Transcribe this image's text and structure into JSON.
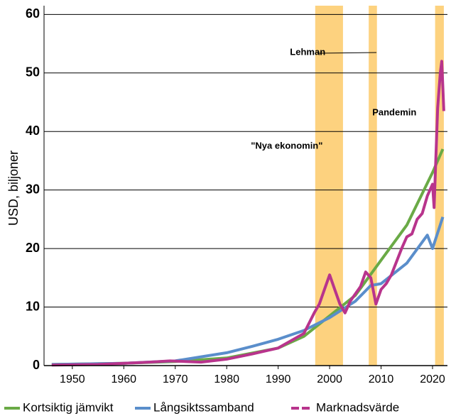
{
  "chart_data": {
    "type": "line",
    "y_label": "USD, biljoner",
    "xlim": [
      1944.5,
      2022.9
    ],
    "xticks": [
      1950,
      1960,
      1970,
      1980,
      1990,
      2000,
      2010,
      2020
    ],
    "ylim": [
      0,
      61.5
    ],
    "yticks": [
      0,
      10,
      20,
      30,
      40,
      50,
      60
    ],
    "grid": true,
    "shaded_periods": [
      [
        1997.2,
        2002.6
      ],
      [
        2007.6,
        2009.2
      ],
      [
        2020.5,
        2022.2
      ]
    ],
    "shade_color": "#fdd27f",
    "annotations": [
      {
        "text": "Lehman",
        "x": 1992.3,
        "y": 53.5
      },
      {
        "text": "Pandemin",
        "x": 2008.3,
        "y": 43.2
      },
      {
        "text": "\"Nya ekonomin\"",
        "x": 1984.7,
        "y": 37.5
      }
    ],
    "series": [
      {
        "name": "Kortsiktig jämvikt",
        "color": "#6aaa46",
        "x": [
          1946,
          1960,
          1970,
          1980,
          1990,
          1995,
          2000,
          2005,
          2010,
          2015,
          2020,
          2022
        ],
        "values": [
          0.2,
          0.4,
          0.7,
          1.3,
          3.0,
          5.0,
          8.5,
          12,
          18,
          24,
          33,
          37
        ]
      },
      {
        "name": "Långsiktssamband",
        "color": "#5a8ecb",
        "x": [
          1946,
          1960,
          1970,
          1980,
          1985,
          1990,
          1995,
          2000,
          2005,
          2008,
          2010,
          2015,
          2019,
          2020,
          2022
        ],
        "values": [
          0.2,
          0.4,
          0.8,
          2.2,
          3.3,
          4.5,
          6.0,
          8.2,
          11,
          13.7,
          14,
          17.5,
          22.3,
          20,
          25.4
        ]
      },
      {
        "name": "Marknadsvärde",
        "color": "#b8348c",
        "x": [
          1946,
          1955,
          1960,
          1965,
          1969,
          1972,
          1975,
          1980,
          1985,
          1990,
          1995,
          1997,
          1998,
          1999,
          2000,
          2001,
          2002,
          2003,
          2004,
          2006,
          2007,
          2008,
          2009,
          2010,
          2011,
          2012,
          2014,
          2015,
          2016,
          2017,
          2018,
          2019,
          2020,
          2020.3,
          2021,
          2021.5,
          2021.8,
          2022.2
        ],
        "values": [
          0.1,
          0.2,
          0.4,
          0.6,
          0.8,
          0.7,
          0.6,
          1.1,
          2.0,
          3.0,
          5.5,
          9,
          10.5,
          13,
          15.5,
          13,
          10.5,
          9,
          11,
          13.5,
          16,
          15,
          10.5,
          13,
          14,
          15.5,
          20,
          22,
          22.5,
          25,
          26,
          29,
          31,
          27,
          44,
          50,
          52,
          43.5
        ]
      }
    ]
  }
}
